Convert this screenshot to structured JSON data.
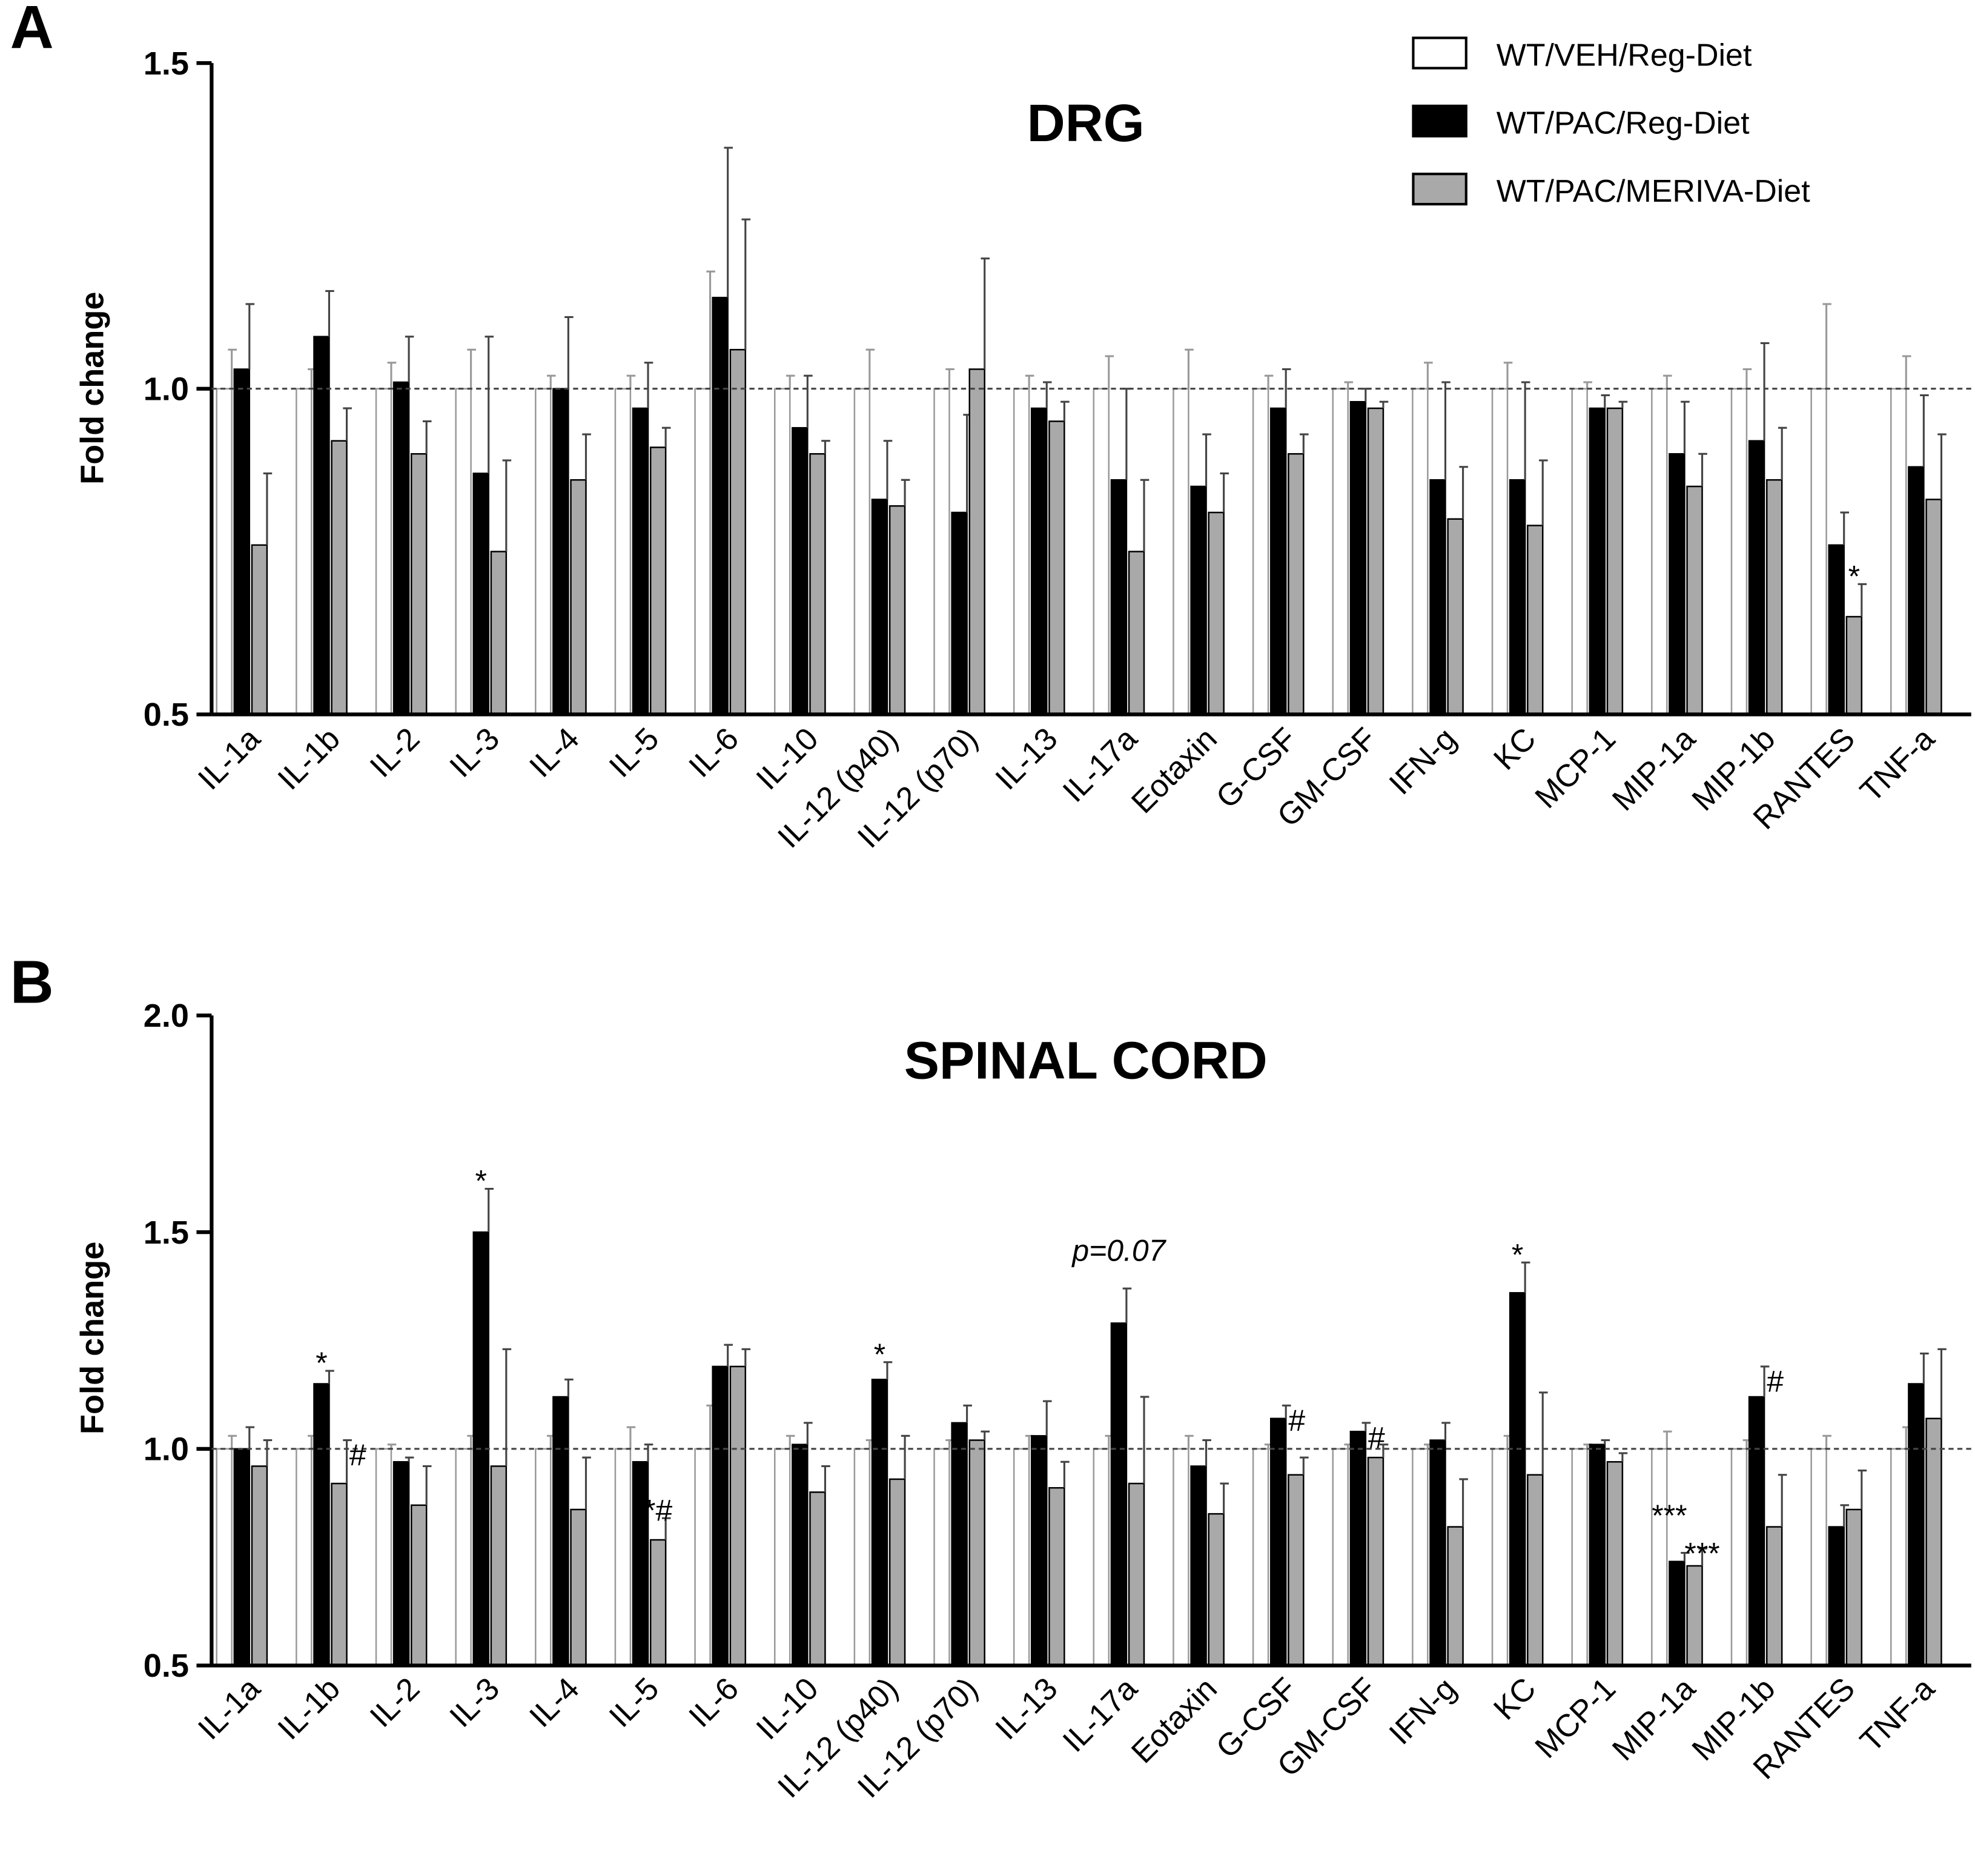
{
  "legend": [
    "WT/VEH/Reg-Diet",
    "WT/PAC/Reg-Diet",
    "WT/PAC/MERIVA-Diet"
  ],
  "colors": {
    "white": "#ffffff",
    "black": "#000000",
    "gray": "#a9a9a9"
  },
  "chart_data": [
    {
      "type": "bar",
      "panel": "A",
      "title": "DRG",
      "ylabel": "Fold change",
      "ylim": [
        0.5,
        1.5
      ],
      "yticks": [
        "0.5",
        "1.0",
        "1.5"
      ],
      "reference_line": 1.0,
      "categories": [
        "IL-1a",
        "IL-1b",
        "IL-2",
        "IL-3",
        "IL-4",
        "IL-5",
        "IL-6",
        "IL-10",
        "IL-12 (p40)",
        "IL-12 (p70)",
        "IL-13",
        "IL-17a",
        "Eotaxin",
        "G-CSF",
        "GM-CSF",
        "IFN-g",
        "KC",
        "MCP-1",
        "MIP-1a",
        "MIP-1b",
        "RANTES",
        "TNF-a"
      ],
      "series": [
        {
          "name": "WT/VEH/Reg-Diet",
          "values": [
            1,
            1,
            1,
            1,
            1,
            1,
            1,
            1,
            1,
            1,
            1,
            1,
            1,
            1,
            1,
            1,
            1,
            1,
            1,
            1,
            1,
            1
          ],
          "errors": [
            0.06,
            0.03,
            0.04,
            0.06,
            0.02,
            0.02,
            0.18,
            0.02,
            0.06,
            0.03,
            0.02,
            0.05,
            0.06,
            0.02,
            0.01,
            0.04,
            0.04,
            0.01,
            0.02,
            0.03,
            0.13,
            0.05
          ]
        },
        {
          "name": "WT/PAC/Reg-Diet",
          "values": [
            1.03,
            1.08,
            1.01,
            0.87,
            1.0,
            0.97,
            1.14,
            0.94,
            0.83,
            0.81,
            0.97,
            0.86,
            0.85,
            0.97,
            0.98,
            0.86,
            0.86,
            0.97,
            0.9,
            0.92,
            0.76,
            0.88
          ],
          "errors": [
            0.1,
            0.07,
            0.07,
            0.21,
            0.11,
            0.07,
            0.23,
            0.08,
            0.09,
            0.15,
            0.04,
            0.14,
            0.08,
            0.06,
            0.02,
            0.15,
            0.15,
            0.02,
            0.08,
            0.15,
            0.05,
            0.11
          ]
        },
        {
          "name": "WT/PAC/MERIVA-Diet",
          "values": [
            0.76,
            0.92,
            0.9,
            0.75,
            0.86,
            0.91,
            1.06,
            0.9,
            0.82,
            1.03,
            0.95,
            0.75,
            0.81,
            0.9,
            0.97,
            0.8,
            0.79,
            0.97,
            0.85,
            0.86,
            0.65,
            0.83
          ],
          "errors": [
            0.11,
            0.05,
            0.05,
            0.14,
            0.07,
            0.03,
            0.2,
            0.02,
            0.04,
            0.17,
            0.03,
            0.11,
            0.06,
            0.03,
            0.01,
            0.08,
            0.1,
            0.01,
            0.05,
            0.08,
            0.05,
            0.1
          ]
        }
      ],
      "annotations": [
        {
          "category": "RANTES",
          "series": 2,
          "text": "*"
        }
      ]
    },
    {
      "type": "bar",
      "panel": "B",
      "title": "SPINAL CORD",
      "ylabel": "Fold change",
      "ylim": [
        0.5,
        2.0
      ],
      "yticks": [
        "0.5",
        "1.0",
        "1.5",
        "2.0"
      ],
      "reference_line": 1.0,
      "categories": [
        "IL-1a",
        "IL-1b",
        "IL-2",
        "IL-3",
        "IL-4",
        "IL-5",
        "IL-6",
        "IL-10",
        "IL-12 (p40)",
        "IL-12 (p70)",
        "IL-13",
        "IL-17a",
        "Eotaxin",
        "G-CSF",
        "GM-CSF",
        "IFN-g",
        "KC",
        "MCP-1",
        "MIP-1a",
        "MIP-1b",
        "RANTES",
        "TNF-a"
      ],
      "series": [
        {
          "name": "WT/VEH/Reg-Diet",
          "values": [
            1,
            1,
            1,
            1,
            1,
            1,
            1,
            1,
            1,
            1,
            1,
            1,
            1,
            1,
            1,
            1,
            1,
            1,
            1,
            1,
            1,
            1
          ],
          "errors": [
            0.03,
            0.03,
            0.01,
            0.03,
            0.03,
            0.05,
            0.1,
            0.03,
            0.02,
            0.02,
            0.03,
            0.03,
            0.03,
            0.01,
            0.01,
            0.01,
            0.03,
            0.01,
            0.04,
            0.02,
            0.03,
            0.05
          ]
        },
        {
          "name": "WT/PAC/Reg-Diet",
          "values": [
            1.0,
            1.15,
            0.97,
            1.5,
            1.12,
            0.97,
            1.19,
            1.01,
            1.16,
            1.06,
            1.03,
            1.29,
            0.96,
            1.07,
            1.04,
            1.02,
            1.36,
            1.01,
            0.74,
            1.12,
            0.82,
            1.15
          ],
          "errors": [
            0.05,
            0.03,
            0.01,
            0.1,
            0.04,
            0.04,
            0.05,
            0.05,
            0.04,
            0.04,
            0.08,
            0.08,
            0.06,
            0.03,
            0.02,
            0.04,
            0.07,
            0.01,
            0.02,
            0.07,
            0.05,
            0.07
          ]
        },
        {
          "name": "WT/PAC/MERIVA-Diet",
          "values": [
            0.96,
            0.92,
            0.87,
            0.96,
            0.86,
            0.79,
            1.19,
            0.9,
            0.93,
            1.02,
            0.91,
            0.92,
            0.85,
            0.94,
            0.98,
            0.82,
            0.94,
            0.97,
            0.73,
            0.82,
            0.86,
            1.07
          ],
          "errors": [
            0.06,
            0.1,
            0.09,
            0.27,
            0.12,
            0.05,
            0.04,
            0.06,
            0.1,
            0.02,
            0.06,
            0.2,
            0.07,
            0.04,
            0.03,
            0.11,
            0.19,
            0.02,
            0.04,
            0.12,
            0.09,
            0.16
          ]
        }
      ],
      "annotations": [
        {
          "category": "IL-1b",
          "series": 1,
          "text": "*"
        },
        {
          "category": "IL-1b",
          "series": 2,
          "text": "#"
        },
        {
          "category": "IL-3",
          "series": 1,
          "text": "*"
        },
        {
          "category": "IL-5",
          "series": 2,
          "text": "*#"
        },
        {
          "category": "IL-12 (p40)",
          "series": 1,
          "text": "*"
        },
        {
          "category": "IL-17a",
          "series": 1,
          "text": "p=0.07"
        },
        {
          "category": "G-CSF",
          "series": 1,
          "text": "#"
        },
        {
          "category": "GM-CSF",
          "series": 1,
          "text": "#"
        },
        {
          "category": "KC",
          "series": 1,
          "text": "*"
        },
        {
          "category": "MIP-1a",
          "series": 1,
          "text": "***"
        },
        {
          "category": "MIP-1a",
          "series": 2,
          "text": "***"
        },
        {
          "category": "MIP-1b",
          "series": 1,
          "text": "#"
        }
      ]
    }
  ]
}
